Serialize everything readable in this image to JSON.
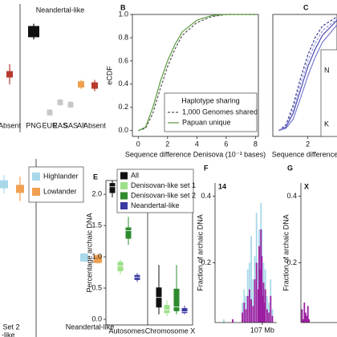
{
  "chart_data": [
    {
      "type": "dot",
      "title": "Neandertal-like",
      "categories": [
        "Absent",
        "PNG",
        "EUR",
        "EAS",
        "SAS",
        "All",
        "Absent"
      ],
      "ylim": [
        0,
        1
      ],
      "series": [
        {
          "values": [
            0.41,
            0.79,
            0.07,
            0.16,
            0.14,
            0.32,
            0.31
          ],
          "errors": [
            0.09,
            0.07,
            0.03,
            0.03,
            0.03,
            0.04,
            0.05
          ],
          "colors": [
            "#b83a2e",
            "#111111",
            "#c8c8c8",
            "#c8c8c8",
            "#c8c8c8",
            "#f0a050",
            "#b83a2e"
          ]
        }
      ]
    },
    {
      "type": "line",
      "label": "B",
      "xlabel": "Sequence difference Denisova (10⁻³ bases)",
      "ylabel": "eCDF",
      "xlim": [
        -0.4,
        8.2
      ],
      "ylim": [
        -0.05,
        1.0
      ],
      "xticks": [
        0,
        2,
        4,
        6,
        8
      ],
      "yticks": [
        {
          "value": 0,
          "label": "0.0"
        },
        0.2,
        0.4,
        0.6,
        0.8,
        {
          "value": 1,
          "label": "1.0"
        }
      ],
      "legend_title": "Haplotype sharing",
      "x": [
        0,
        0.5,
        1,
        1.5,
        2,
        2.5,
        3,
        4,
        5,
        6,
        8
      ],
      "series": [
        {
          "name": "1,000 Genomes shared",
          "color": "#555555",
          "style": "dashed",
          "values": [
            0,
            0.02,
            0.15,
            0.36,
            0.55,
            0.7,
            0.82,
            0.93,
            0.98,
            1,
            1
          ]
        },
        {
          "name": "Papuan unique",
          "color": "#5a9a3c",
          "style": "solid",
          "values": [
            0,
            0.03,
            0.2,
            0.42,
            0.6,
            0.74,
            0.85,
            0.95,
            0.99,
            1,
            1
          ]
        }
      ]
    },
    {
      "type": "line",
      "label": "C",
      "xlabel": "Sequence difference",
      "xlim": [
        -0.4,
        4
      ],
      "ylim": [
        -0.05,
        1.0
      ],
      "xticks": [
        2
      ],
      "legend_fragments": [
        "N",
        "K"
      ],
      "x": [
        0,
        0.5,
        1,
        1.5,
        2,
        2.5,
        3,
        4
      ],
      "series": [
        {
          "color": "#4a4ab0",
          "style": "solid",
          "values": [
            0,
            0.03,
            0.15,
            0.35,
            0.55,
            0.7,
            0.82,
            0.95
          ]
        },
        {
          "color": "#7a7ad0",
          "style": "solid",
          "values": [
            0,
            0.02,
            0.1,
            0.28,
            0.47,
            0.63,
            0.76,
            0.91
          ]
        },
        {
          "color": "#3a3a90",
          "style": "dashed",
          "values": [
            0,
            0.05,
            0.22,
            0.45,
            0.65,
            0.8,
            0.9,
            0.98
          ]
        },
        {
          "color": "#9090e0",
          "style": "dashed",
          "values": [
            0,
            0.04,
            0.18,
            0.4,
            0.6,
            0.75,
            0.86,
            0.96
          ]
        }
      ]
    },
    {
      "type": "dot",
      "categories": [
        "Set 2",
        "Neandertal-like"
      ],
      "label_fragments": [
        "-like"
      ],
      "ylim": [
        0,
        1
      ],
      "series": [
        {
          "name": "Highlander",
          "color": "#a8d8ea",
          "values": [
            0.87,
            0.39
          ],
          "errors": [
            0.06,
            0.03
          ]
        },
        {
          "name": "Lowlander",
          "color": "#f0a050",
          "values": [
            0.84,
            0.38
          ],
          "errors": [
            0.08,
            0.03
          ]
        }
      ]
    },
    {
      "type": "box",
      "label": "E",
      "ylabel": "Percentage archaic DNA",
      "categories": [
        "Autosomes",
        "Chromosome X"
      ],
      "ylim": [
        -0.09,
        2.22
      ],
      "yticks": [
        {
          "value": 0,
          "label": "0.0"
        },
        0.5,
        {
          "value": 1,
          "label": "1.0"
        },
        1.5,
        {
          "value": 2,
          "label": "2.0"
        }
      ],
      "series": [
        {
          "name": "All",
          "color": "#111111",
          "boxes": [
            {
              "min": 1.95,
              "q1": 2.02,
              "median": 2.12,
              "q3": 2.18,
              "max": 2.22
            },
            {
              "min": 0.08,
              "q1": 0.19,
              "median": 0.35,
              "q3": 0.51,
              "max": 0.87
            }
          ]
        },
        {
          "name": "Denisovan-like set 1",
          "color": "#9de08a",
          "boxes": [
            {
              "min": 0.72,
              "q1": 0.77,
              "median": 0.85,
              "q3": 0.92,
              "max": 0.95
            },
            {
              "min": 0.05,
              "q1": 0.1,
              "median": 0.15,
              "q3": 0.23,
              "max": 0.3
            }
          ]
        },
        {
          "name": "Denisovan-like set 2",
          "color": "#2e8b2e",
          "boxes": [
            {
              "min": 1.19,
              "q1": 1.29,
              "median": 1.42,
              "q3": 1.47,
              "max": 1.64
            },
            {
              "min": 0.08,
              "q1": 0.13,
              "median": 0.2,
              "q3": 0.49,
              "max": 0.87
            }
          ]
        },
        {
          "name": "Neandertal-like",
          "color": "#3a3aa0",
          "boxes": [
            {
              "min": 0.6,
              "q1": 0.63,
              "median": 0.67,
              "q3": 0.71,
              "max": 0.74
            },
            {
              "min": 0.08,
              "q1": 0.1,
              "median": 0.12,
              "q3": 0.18,
              "max": 0.22
            }
          ]
        }
      ]
    },
    {
      "type": "bar",
      "label": "F",
      "chromosome": "14",
      "ylabel": "Fraction of archaic DNA",
      "xlim": [
        0,
        140
      ],
      "xticks": [
        {
          "value": 107,
          "label": "107 Mb"
        }
      ],
      "ylim": [
        0.02,
        0.44
      ],
      "yticks": [
        0.2,
        0.4
      ],
      "x": [
        20,
        40,
        62,
        66,
        70,
        74,
        78,
        82,
        86,
        90,
        94,
        98,
        100,
        102,
        104,
        106,
        108,
        110,
        112,
        114,
        118,
        122,
        126,
        130
      ],
      "series": [
        {
          "color": "#a8d8ea",
          "values": [
            0.03,
            0.02,
            0.08,
            0.12,
            0.1,
            0.18,
            0.2,
            0.28,
            0.15,
            0.22,
            0.35,
            0.2,
            0.3,
            0.25,
            0.38,
            0.3,
            0.15,
            0.2,
            0.1,
            0.18,
            0.1,
            0.08,
            0.15,
            0.06
          ]
        },
        {
          "color": "#9b1fa0",
          "values": [
            0.02,
            0.03,
            0.05,
            0.08,
            0.06,
            0.1,
            0.12,
            0.09,
            0.07,
            0.15,
            0.2,
            0.12,
            0.25,
            0.18,
            0.3,
            0.22,
            0.1,
            0.14,
            0.08,
            0.12,
            0.06,
            0.05,
            0.1,
            0.04
          ]
        }
      ]
    },
    {
      "type": "bar",
      "label": "G",
      "chromosome": "X",
      "ylabel": "Fraction of archaic DNA",
      "xlim": [
        0,
        155
      ],
      "ylim": [
        0.02,
        0.44
      ],
      "yticks": [
        0.2,
        0.4
      ],
      "x": [
        5,
        10,
        15,
        20,
        25,
        30,
        35
      ],
      "series": [
        {
          "color": "#9b1fa0",
          "values": [
            0.06,
            0.03,
            0.08,
            0.05,
            0.04,
            0.07,
            0.03
          ]
        }
      ]
    }
  ]
}
